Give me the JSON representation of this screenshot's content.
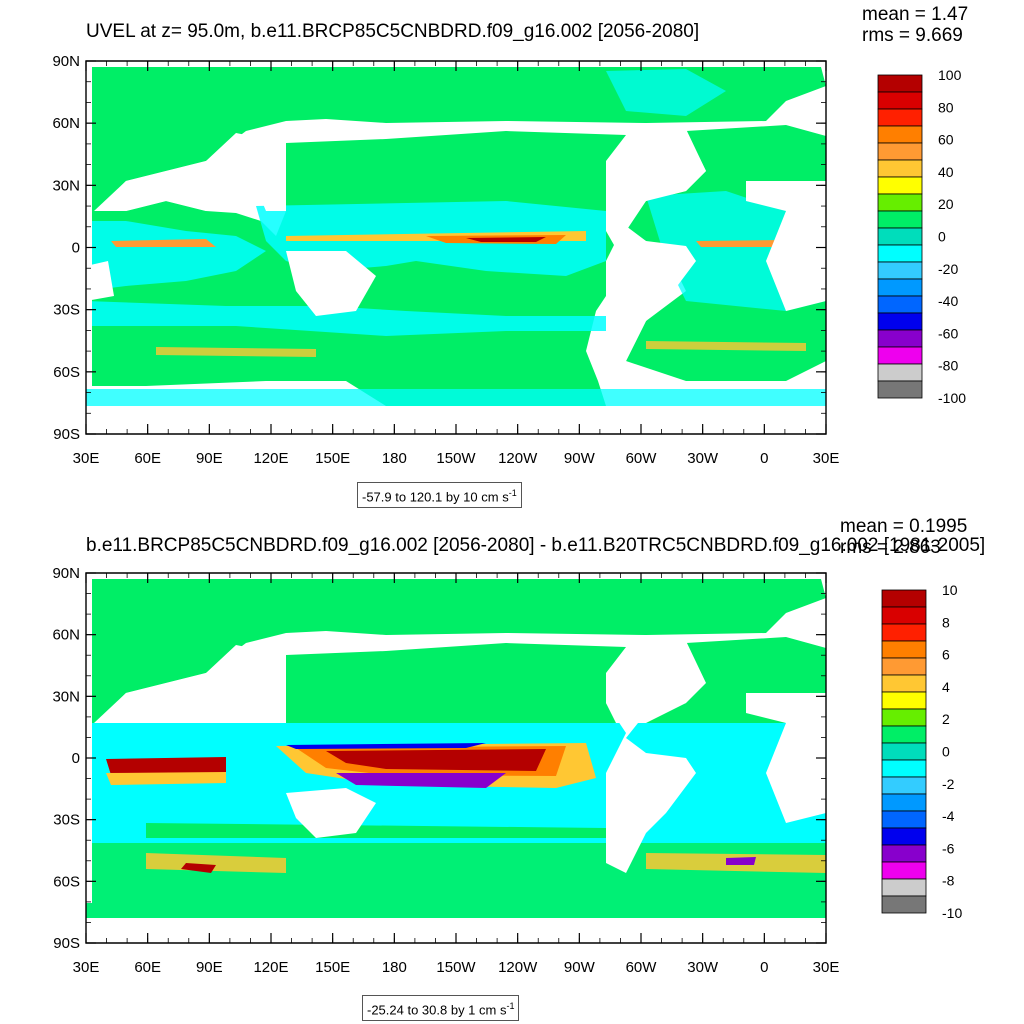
{
  "panels": [
    {
      "title": "UVEL at z=  95.0m, b.e11.BRCP85C5CNBDRD.f09_g16.002 [2056-2080]",
      "stats": {
        "mean": "mean = 1.47",
        "rms": "rms = 9.669"
      },
      "range": {
        "text": "-57.9 to 120.1 by 10 cm s",
        "sup": "-1"
      },
      "colorbar": {
        "labels": [
          "100",
          "80",
          "60",
          "40",
          "20",
          "0",
          "-20",
          "-40",
          "-60",
          "-80",
          "-100"
        ],
        "colors": [
          "#b40000",
          "#d90000",
          "#ff2000",
          "#ff7f00",
          "#ff9a33",
          "#ffc733",
          "#ffff00",
          "#66ee00",
          "#00ee66",
          "#00ddbb",
          "#00ffff",
          "#33ccff",
          "#0099ff",
          "#0066ff",
          "#0000ee",
          "#8800cc",
          "#ee00ee",
          "#cccccc",
          "#777777"
        ]
      }
    },
    {
      "title": "b.e11.BRCP85C5CNBDRD.f09_g16.002 [2056-2080] - b.e11.B20TRC5CNBDRD.f09_g16.002 [1981-2005]",
      "stats": {
        "mean": "mean = 0.1995",
        "rms": "rms = 2.863"
      },
      "range": {
        "text": "-25.24 to 30.8 by 1 cm s",
        "sup": "-1"
      },
      "colorbar": {
        "labels": [
          "10",
          "8",
          "6",
          "4",
          "2",
          "0",
          "-2",
          "-4",
          "-6",
          "-8",
          "-10"
        ],
        "colors": [
          "#b40000",
          "#d90000",
          "#ff2000",
          "#ff7f00",
          "#ff9a33",
          "#ffc733",
          "#ffff00",
          "#66ee00",
          "#00ee66",
          "#00ddbb",
          "#00ffff",
          "#33ccff",
          "#0099ff",
          "#0066ff",
          "#0000ee",
          "#8800cc",
          "#ee00ee",
          "#cccccc",
          "#777777"
        ]
      }
    }
  ],
  "axes": {
    "lat_labels": [
      "90N",
      "60N",
      "30N",
      "0",
      "30S",
      "60S",
      "90S"
    ],
    "lon_labels": [
      "30E",
      "60E",
      "90E",
      "120E",
      "150E",
      "180",
      "150W",
      "120W",
      "90W",
      "60W",
      "30W",
      "0",
      "30E"
    ]
  },
  "colors": {
    "ocean_base": "#00ee66",
    "ocean_cyan": "#00ffff",
    "land": "#ffffff"
  }
}
